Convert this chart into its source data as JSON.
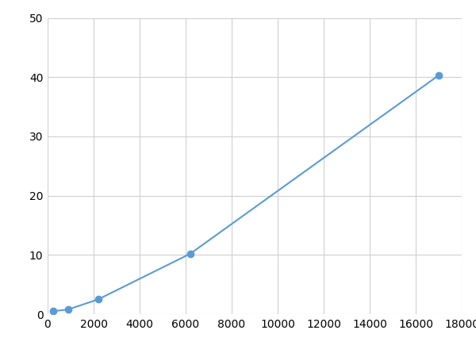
{
  "x": [
    250,
    900,
    2200,
    6200,
    17000
  ],
  "y": [
    0.5,
    0.8,
    2.5,
    10.2,
    40.3
  ],
  "line_color": "#5b9bd5",
  "marker_color": "#5b9bd5",
  "marker_size": 6,
  "line_width": 1.5,
  "xlim": [
    0,
    18000
  ],
  "ylim": [
    0,
    50
  ],
  "xticks": [
    0,
    2000,
    4000,
    6000,
    8000,
    10000,
    12000,
    14000,
    16000,
    18000
  ],
  "yticks": [
    0,
    10,
    20,
    30,
    40,
    50
  ],
  "grid_color": "#d0d0d0",
  "background_color": "#ffffff",
  "tick_fontsize": 10,
  "figsize": [
    6.0,
    4.5
  ],
  "dpi": 100
}
